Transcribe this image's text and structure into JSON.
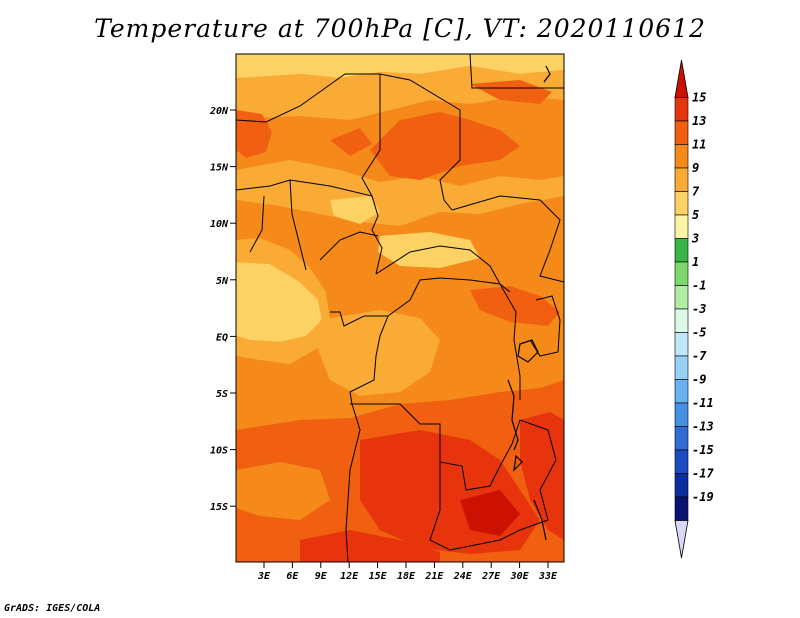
{
  "title": "Temperature at 700hPa [C], VT: 2020110612",
  "credit": "GrADS: IGES/COLA",
  "map": {
    "lat_ticks": [
      "20N",
      "15N",
      "10N",
      "5N",
      "EQ",
      "5S",
      "10S",
      "15S"
    ],
    "lon_ticks": [
      "3E",
      "6E",
      "9E",
      "12E",
      "15E",
      "18E",
      "21E",
      "24E",
      "27E",
      "30E",
      "33E"
    ]
  },
  "colorbar": {
    "labels": [
      "15",
      "13",
      "11",
      "9",
      "7",
      "5",
      "3",
      "1",
      "-1",
      "-3",
      "-5",
      "-7",
      "-9",
      "-11",
      "-13",
      "-15",
      "-17",
      "-19"
    ],
    "colors": [
      "#cc1100",
      "#e8340c",
      "#f06010",
      "#f58a1a",
      "#f9ab35",
      "#fcd264",
      "#fdf4a6",
      "#3ab54a",
      "#7cd86a",
      "#b0eca2",
      "#def9e8",
      "#bfe6f9",
      "#96d0f6",
      "#6ab2ef",
      "#4790e6",
      "#2f6cd6",
      "#1c4cc0",
      "#0a2ea0",
      "#0a1470",
      "#d8d8f8"
    ]
  }
}
